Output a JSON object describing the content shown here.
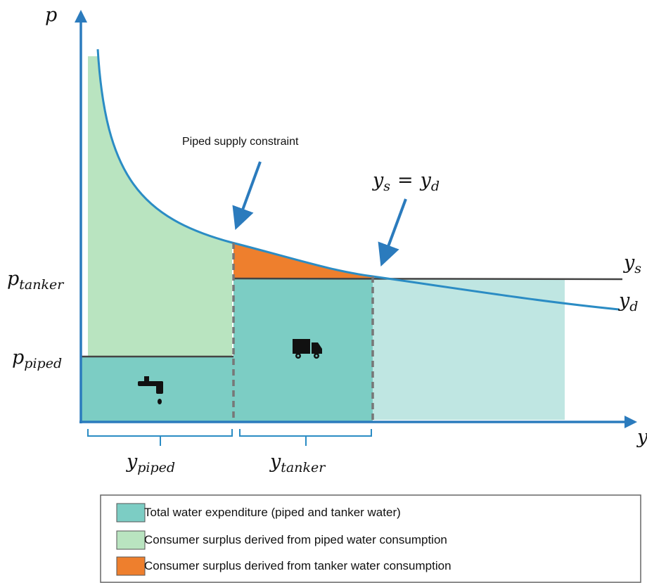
{
  "axes": {
    "y_label": "p",
    "x_label": "y"
  },
  "prices": {
    "tanker": {
      "base": "p",
      "sub": "tanker"
    },
    "piped": {
      "base": "p",
      "sub": "piped"
    }
  },
  "curves": {
    "supply": {
      "base": "y",
      "sub": "s"
    },
    "demand": {
      "base": "y",
      "sub": "d"
    }
  },
  "quantities": {
    "piped": {
      "base": "y",
      "sub": "piped"
    },
    "tanker": {
      "base": "y",
      "sub": "tanker"
    }
  },
  "annotations": {
    "constraint": "Piped supply constraint",
    "equilibrium": {
      "left": {
        "base": "y",
        "sub": "s"
      },
      "operator": "=",
      "right": {
        "base": "y",
        "sub": "d"
      }
    }
  },
  "legend": [
    "Total water expenditure (piped and tanker water)",
    "Consumer surplus derived from piped water consumption",
    "Consumer surplus derived from tanker water consumption"
  ]
}
